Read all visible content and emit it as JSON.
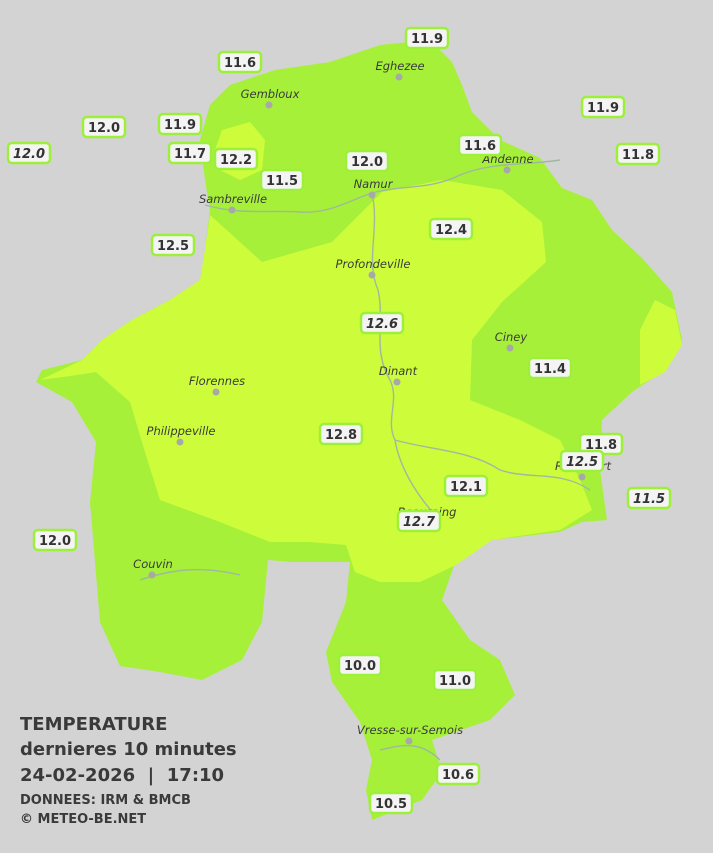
{
  "stations": [
    {
      "label": "11.6",
      "italic": false
    },
    {
      "label": "11.9",
      "italic": false
    },
    {
      "label": "12.0",
      "italic": false
    },
    {
      "label": "11.9",
      "italic": false
    },
    {
      "label": "11.9",
      "italic": false
    },
    {
      "label": "12.0",
      "italic": true
    },
    {
      "label": "11.7",
      "italic": false
    },
    {
      "label": "12.2",
      "italic": false
    },
    {
      "label": "12.0",
      "italic": false
    },
    {
      "label": "11.6",
      "italic": false
    },
    {
      "label": "11.8",
      "italic": false
    },
    {
      "label": "11.5",
      "italic": false
    },
    {
      "label": "12.4",
      "italic": false
    },
    {
      "label": "12.5",
      "italic": false
    },
    {
      "label": "12.6",
      "italic": true
    },
    {
      "label": "11.4",
      "italic": false
    },
    {
      "label": "12.8",
      "italic": false
    },
    {
      "label": "11.8",
      "italic": false
    },
    {
      "label": "12.5",
      "italic": true
    },
    {
      "label": "12.1",
      "italic": false
    },
    {
      "label": "11.5",
      "italic": true
    },
    {
      "label": "12.7",
      "italic": true
    },
    {
      "label": "12.0",
      "italic": false
    },
    {
      "label": "10.0",
      "italic": false
    },
    {
      "label": "11.0",
      "italic": false
    },
    {
      "label": "10.6",
      "italic": false
    },
    {
      "label": "10.5",
      "italic": false
    }
  ],
  "cities": [
    "Gembloux",
    "Eghezee",
    "Andenne",
    "Namur",
    "Sambreville",
    "Profondeville",
    "Ciney",
    "Dinant",
    "Florennes",
    "Philippeville",
    "Rochefort",
    "Beauraing",
    "Couvin",
    "Vresse-sur-Semois"
  ],
  "legend": {
    "title": "TEMPERATURE",
    "subtitle": "dernieres 10 minutes",
    "datetime": "24-02-2026  |  17:10",
    "source": "DONNEES: IRM & BMCB",
    "copyright": "© METEO-BE.NET"
  }
}
